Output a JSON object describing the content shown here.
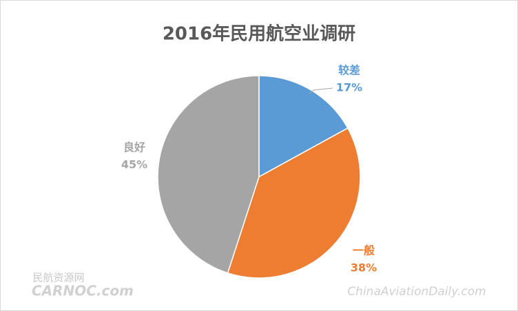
{
  "chart_data": {
    "type": "pie",
    "title": "2016年民用航空业调研",
    "categories": [
      "较差",
      "一般",
      "良好"
    ],
    "values": [
      17,
      38,
      45
    ],
    "value_labels": [
      "17%",
      "38%",
      "45%"
    ],
    "colors": [
      "#5b9bd5",
      "#ed7d31",
      "#a5a5a5"
    ]
  },
  "watermarks": {
    "left_top": "民航资源网",
    "left_bottom": "CARNOC.com",
    "right": "ChinaAviationDaily.com"
  }
}
